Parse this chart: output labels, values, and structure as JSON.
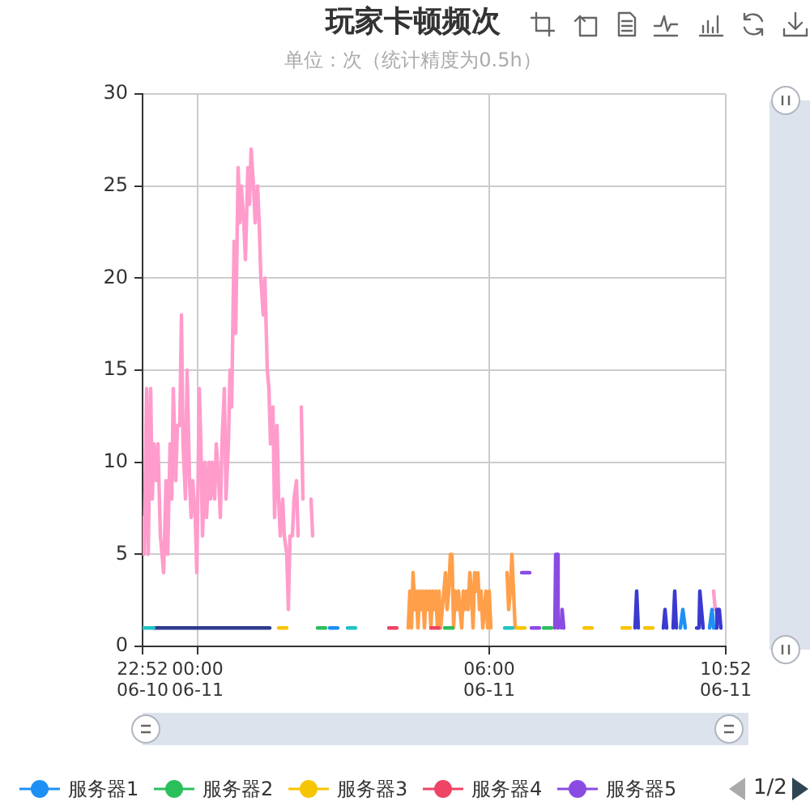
{
  "chart_data": {
    "type": "line",
    "title": "玩家卡顿频次",
    "subtitle": "单位：次（统计精度为0.5h）",
    "xlim": [
      "--06-10T22:52",
      "--06-11T10:52"
    ],
    "xticks": [
      {
        "value": "--06-10T22:52",
        "label": "22:52\n06-10"
      },
      {
        "value": "--06-11T00:00",
        "label": "00:00\n06-11"
      },
      {
        "value": "--06-11T06:00",
        "label": "06:00\n06-11"
      },
      {
        "value": "--06-11T10:52",
        "label": "10:52\n06-11"
      }
    ],
    "ylim": [
      0,
      30
    ],
    "yticks": [
      0,
      5,
      10,
      15,
      20,
      25,
      30
    ],
    "grid": true,
    "legend": "bottom",
    "marker": "none",
    "annotations": [
      "1/2"
    ],
    "series": [
      {
        "color": "#ff9ccb",
        "x": [
          "--06-10T22:52",
          "--06-10T22:54",
          "--06-10T22:57",
          "--06-10T22:59",
          "--06-10T23:02",
          "--06-10T23:04",
          "--06-10T23:06",
          "--06-10T23:09",
          "--06-10T23:11",
          "--06-10T23:14",
          "--06-10T23:16",
          "--06-10T23:18",
          "--06-10T23:21",
          "--06-10T23:23",
          "--06-10T23:26",
          "--06-10T23:28",
          "--06-10T23:30",
          "--06-10T23:33",
          "--06-10T23:35",
          "--06-10T23:38",
          "--06-10T23:40",
          "--06-10T23:42",
          "--06-10T23:45",
          "--06-10T23:47",
          "--06-10T23:50",
          "--06-10T23:52",
          "--06-10T23:54",
          "--06-10T23:57",
          "--06-10T23:59",
          "--06-11T00:02",
          "--06-11T00:04",
          "--06-11T00:06",
          "--06-11T00:09",
          "--06-11T00:11",
          "--06-11T00:14",
          "--06-11T00:16",
          "--06-11T00:18",
          "--06-11T00:21",
          "--06-11T00:23",
          "--06-11T00:26",
          "--06-11T00:28",
          "--06-11T00:30",
          "--06-11T00:33",
          "--06-11T00:35",
          "--06-11T00:38",
          "--06-11T00:40",
          "--06-11T00:42",
          "--06-11T00:45",
          "--06-11T00:47",
          "--06-11T00:50",
          "--06-11T00:52",
          "--06-11T00:54",
          "--06-11T00:57",
          "--06-11T00:59",
          "--06-11T01:02",
          "--06-11T01:04",
          "--06-11T01:06",
          "--06-11T01:09",
          "--06-11T01:11",
          "--06-11T01:14",
          "--06-11T01:16",
          "--06-11T01:18",
          "--06-11T01:21",
          "--06-11T01:23",
          "--06-11T01:26",
          "--06-11T01:28",
          "--06-11T01:30",
          "--06-11T01:33",
          "--06-11T01:35",
          "--06-11T01:38",
          "--06-11T01:40",
          "--06-11T01:42",
          "--06-11T01:45",
          "--06-11T01:47",
          "--06-11T01:50",
          "--06-11T01:52",
          "--06-11T01:54",
          "--06-11T01:57",
          "--06-11T01:59",
          "--06-11T02:02",
          "--06-11T02:04",
          "--06-11T02:06",
          "--06-11T02:08",
          "--06-11T02:10",
          "--06-11T02:12",
          "--06-11T02:20",
          "--06-11T02:22",
          "--06-11T02:24",
          "--06-11T10:37",
          "--06-11T10:39"
        ],
        "values": [
          7,
          5,
          14,
          5,
          14,
          8,
          11,
          9,
          11,
          6,
          5,
          4,
          9,
          5,
          11,
          8,
          14,
          9,
          12,
          12,
          18,
          11,
          8,
          15,
          9,
          7,
          9,
          7,
          4,
          14,
          11,
          6,
          10,
          7,
          10,
          8,
          10,
          8,
          11,
          9,
          7,
          11,
          14,
          8,
          11,
          15,
          13,
          22,
          17,
          26,
          23,
          25,
          23,
          21,
          26,
          24,
          27,
          25,
          23,
          25,
          23,
          20,
          18,
          20,
          15,
          14,
          11,
          13,
          7,
          12,
          8,
          6,
          8,
          6,
          5,
          2,
          6,
          6,
          8,
          9,
          6,
          null,
          13,
          8,
          null,
          8,
          6,
          null,
          3,
          2
        ]
      },
      {
        "color": "#2f3c8c",
        "x": [
          "--06-10T23:06",
          "--06-11T01:29"
        ],
        "values": [
          1,
          1
        ]
      },
      {
        "color": "#ff9f4a",
        "x": [
          "--06-11T04:20",
          "--06-11T04:22",
          "--06-11T04:24",
          "--06-11T04:26",
          "--06-11T04:28",
          "--06-11T04:30",
          "--06-11T04:32",
          "--06-11T04:34",
          "--06-11T04:36",
          "--06-11T04:38",
          "--06-11T04:40",
          "--06-11T04:42",
          "--06-11T04:44",
          "--06-11T04:46",
          "--06-11T04:48",
          "--06-11T04:50",
          "--06-11T04:52",
          "--06-11T04:54",
          "--06-11T04:56",
          "--06-11T04:58",
          "--06-11T05:00",
          "--06-11T05:02",
          "--06-11T05:04",
          "--06-11T05:06",
          "--06-11T05:08",
          "--06-11T05:10",
          "--06-11T05:12",
          "--06-11T05:14",
          "--06-11T05:16",
          "--06-11T05:18",
          "--06-11T05:20",
          "--06-11T05:22",
          "--06-11T05:24",
          "--06-11T05:26",
          "--06-11T05:28",
          "--06-11T05:30",
          "--06-11T05:32",
          "--06-11T05:34",
          "--06-11T05:36",
          "--06-11T05:38",
          "--06-11T05:40",
          "--06-11T05:42",
          "--06-11T05:44",
          "--06-11T05:46",
          "--06-11T05:48",
          "--06-11T05:50",
          "--06-11T05:52",
          "--06-11T05:54",
          "--06-11T05:56",
          "--06-11T05:58",
          "--06-11T06:00",
          "--06-11T06:02",
          "--06-11T06:06",
          "--06-11T06:22",
          "--06-11T06:24",
          "--06-11T06:26",
          "--06-11T06:28",
          "--06-11T06:30",
          "--06-11T06:32"
        ],
        "values": [
          1,
          3,
          1,
          4,
          2,
          3,
          1,
          3,
          2,
          3,
          1,
          3,
          2,
          3,
          1,
          3,
          2,
          3,
          1,
          3,
          1,
          2,
          3,
          4,
          2,
          3,
          5,
          5,
          1,
          3,
          2,
          3,
          2,
          1,
          3,
          2,
          3,
          2,
          4,
          3,
          1,
          4,
          3,
          4,
          2,
          3,
          1,
          2,
          3,
          1,
          3,
          1,
          null,
          4,
          2,
          3,
          5,
          3,
          1
        ]
      },
      {
        "color": "#3a3ad0",
        "x": [
          "--06-11T09:00",
          "--06-11T09:02",
          "--06-11T09:04",
          "--06-11T09:18",
          "--06-11T09:35",
          "--06-11T09:37",
          "--06-11T09:39",
          "--06-11T09:42",
          "--06-11T09:47",
          "--06-11T09:49",
          "--06-11T09:51",
          "--06-11T10:00",
          "--06-11T10:16",
          "--06-11T10:19",
          "--06-11T10:20",
          "--06-11T10:22",
          "--06-11T10:24",
          "--06-11T10:30",
          "--06-11T10:40",
          "--06-11T10:41",
          "--06-11T10:44",
          "--06-11T10:46"
        ],
        "values": [
          1,
          3,
          1,
          null,
          1,
          2,
          1,
          null,
          1,
          3,
          1,
          null,
          1,
          1,
          3,
          2,
          1,
          null,
          1,
          2,
          2,
          1
        ]
      },
      {
        "name": "服务器1",
        "color": "#1e8ff5",
        "x": [
          "--06-11T02:43",
          "--06-11T02:53",
          "--06-11T02:56",
          "--06-11T09:56",
          "--06-11T09:59",
          "--06-11T10:02",
          "--06-11T10:12",
          "--06-11T10:32",
          "--06-11T10:35",
          "--06-11T10:37"
        ],
        "values": [
          1,
          1,
          null,
          1,
          2,
          1,
          null,
          1,
          2,
          1
        ]
      },
      {
        "name": "服务器2",
        "color": "#2bbf5b",
        "x": [
          "--06-11T02:28",
          "--06-11T02:38",
          "--06-11T02:41",
          "--06-11T05:05",
          "--06-11T05:15",
          "--06-11T05:18",
          "--06-11T07:07",
          "--06-11T07:17"
        ],
        "values": [
          1,
          1,
          null,
          1,
          1,
          null,
          1,
          1
        ]
      },
      {
        "name": "服务器3",
        "color": "#f7c400",
        "x": [
          "--06-11T01:40",
          "--06-11T01:50",
          "--06-11T01:53",
          "--06-11T06:34",
          "--06-11T06:44",
          "--06-11T06:47",
          "--06-11T07:57",
          "--06-11T08:07",
          "--06-11T08:10",
          "--06-11T08:44",
          "--06-11T08:54",
          "--06-11T08:56",
          "--06-11T09:12",
          "--06-11T09:22"
        ],
        "values": [
          1,
          1,
          null,
          1,
          1,
          null,
          1,
          1,
          null,
          1,
          1,
          null,
          1,
          1
        ]
      },
      {
        "name": "服务器4",
        "color": "#ee4466",
        "x": [
          "--06-11T03:56",
          "--06-11T04:06",
          "--06-11T04:10",
          "--06-11T04:48",
          "--06-11T04:58"
        ],
        "values": [
          1,
          1,
          null,
          1,
          1
        ]
      },
      {
        "name": "服务器5",
        "color": "#8a4be2",
        "x": [
          "--06-11T06:40",
          "--06-11T06:50",
          "--06-11T06:51",
          "--06-11T06:52",
          "--06-11T07:02",
          "--06-11T07:10",
          "--06-11T07:21",
          "--06-11T07:22",
          "--06-11T07:24",
          "--06-11T07:25",
          "--06-11T07:27",
          "--06-11T07:29",
          "--06-11T07:30",
          "--06-11T07:32"
        ],
        "values": [
          4,
          4,
          null,
          1,
          1,
          null,
          1,
          5,
          5,
          1,
          null,
          1,
          2,
          1
        ]
      },
      {
        "color": "#22c3c3",
        "x": [
          "--06-10T22:52",
          "--06-10T23:06",
          "--06-10T23:09",
          "--06-11T03:05",
          "--06-11T03:15",
          "--06-11T03:18",
          "--06-11T06:19",
          "--06-11T06:29"
        ],
        "values": [
          1,
          1,
          null,
          1,
          1,
          null,
          1,
          1
        ]
      }
    ]
  }
}
